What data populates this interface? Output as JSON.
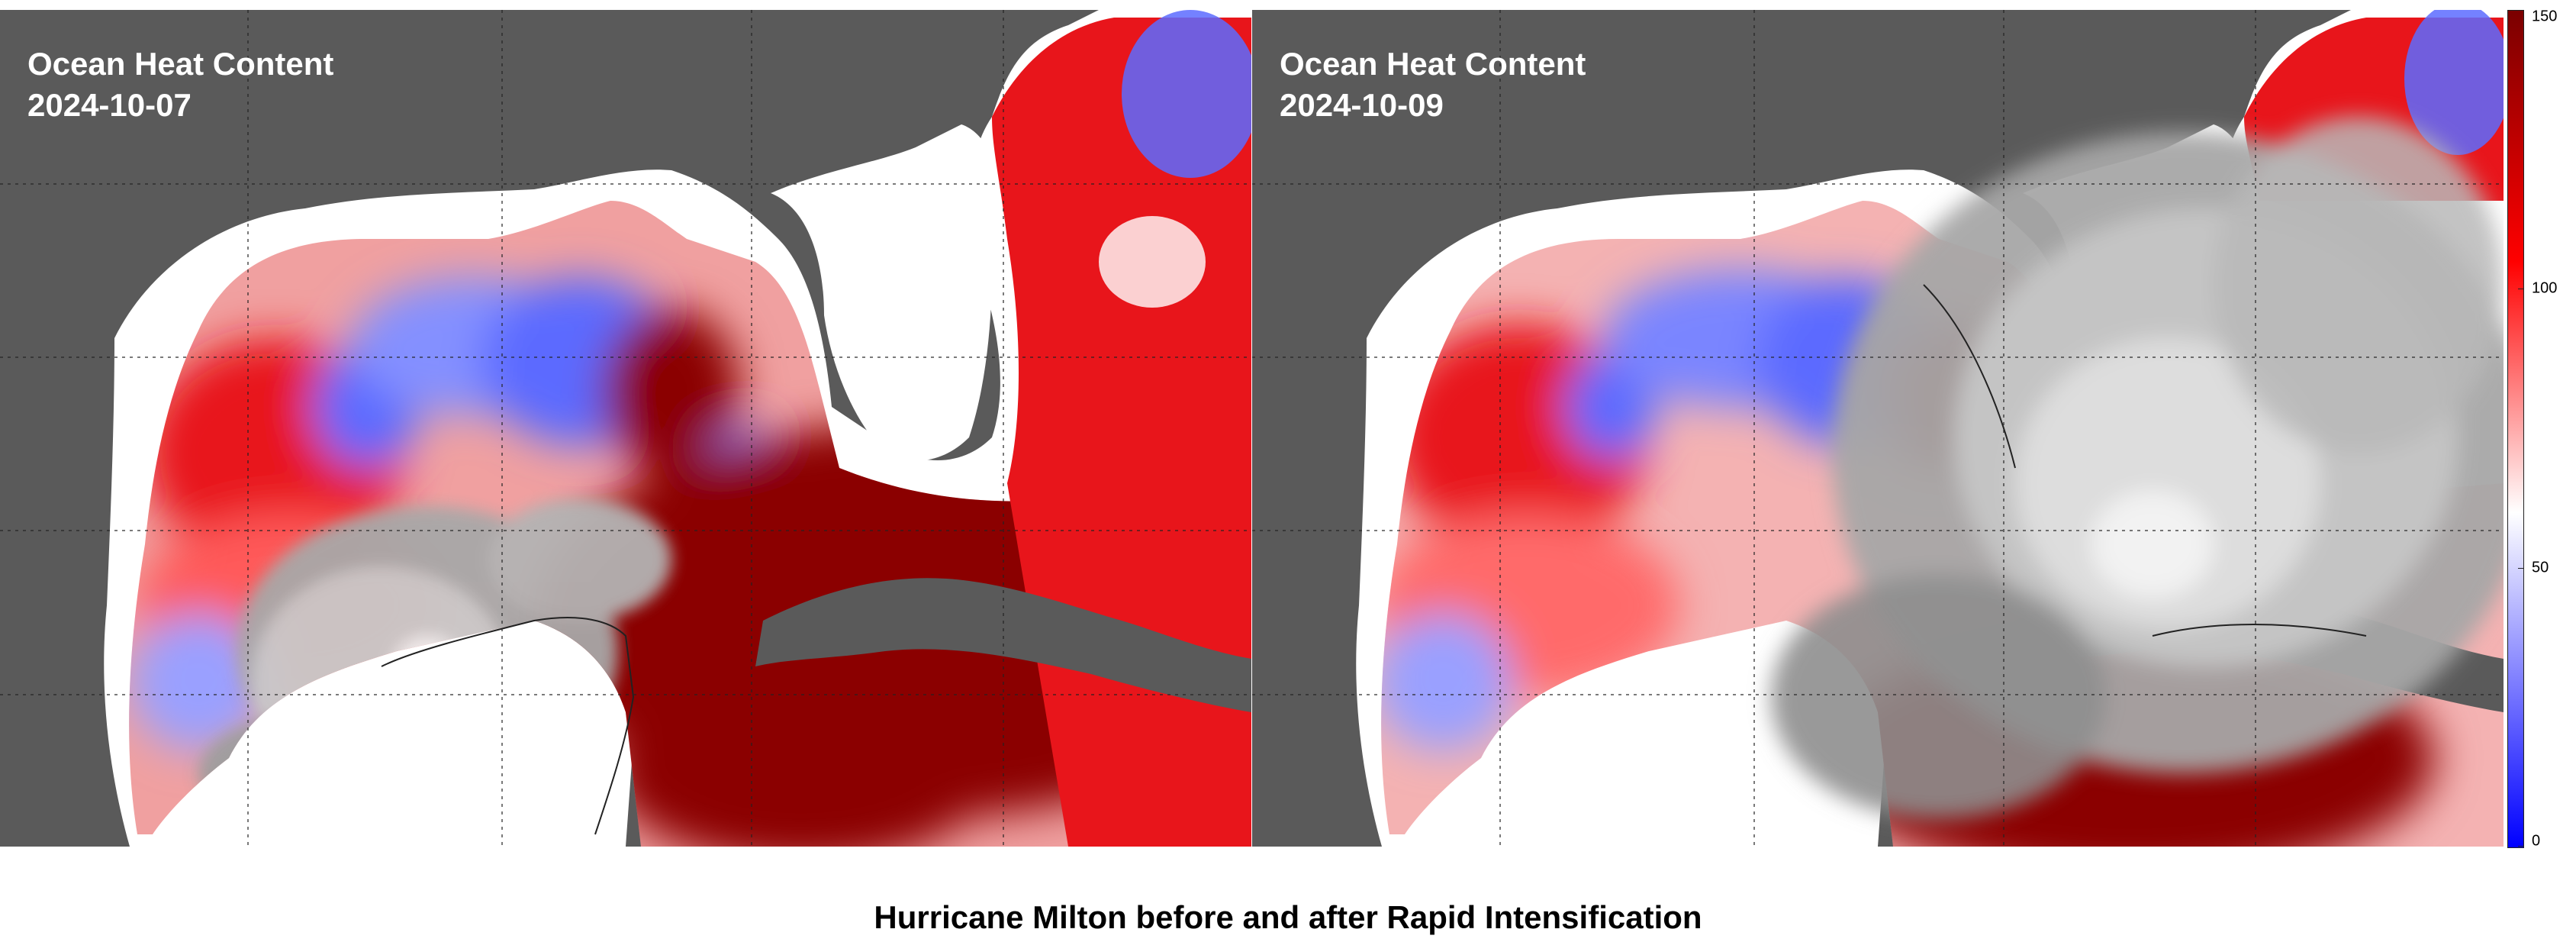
{
  "panels": [
    {
      "title": "Ocean Heat Content",
      "date": "2024-10-07"
    },
    {
      "title": "Ocean Heat Content",
      "date": "2024-10-09"
    }
  ],
  "colorbar": {
    "ticks": [
      "150",
      "100",
      "50",
      "0"
    ],
    "colors": [
      "#0000ff",
      "#ffffff",
      "#ff0000",
      "#7a0000"
    ]
  },
  "caption": "Hurricane Milton before and after Rapid Intensification",
  "colors": {
    "land": "#5a5a5a",
    "coast": "#ffffff",
    "warm": "#e8151b",
    "hot": "#8b0000",
    "cool": "#5c6bff",
    "cloud": "#c8c8c8"
  }
}
